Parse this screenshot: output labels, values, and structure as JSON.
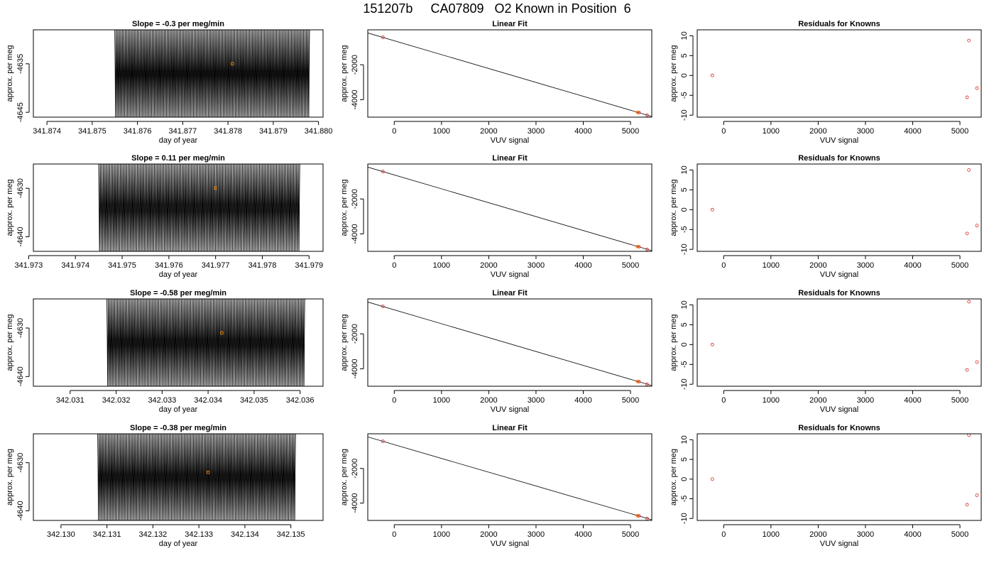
{
  "header": {
    "title": "151207b     CA07809   O2 Known in Position  6"
  },
  "chart_data": [
    {
      "type": "line",
      "panel": "r1c1",
      "title": "Slope =  -0.3  per meg/min",
      "xlabel": "day of year",
      "ylabel": "approx. per meg",
      "xlim": [
        341.8737,
        341.8801
      ],
      "ylim": [
        -4646,
        -4628
      ],
      "xticks": [
        "341.874",
        "341.875",
        "341.876",
        "341.877",
        "341.878",
        "341.879",
        "341.880"
      ],
      "xtick_values": [
        341.874,
        341.875,
        341.876,
        341.877,
        341.878,
        341.879,
        341.88
      ],
      "yticks": [
        "-4635",
        "-4645"
      ],
      "ytick_values": [
        -4635,
        -4645
      ],
      "trace": {
        "x_start": 341.8755,
        "x_end": 341.8798,
        "cycles": 130,
        "high": -4628,
        "low": -4646
      },
      "marker": {
        "x": 341.8781,
        "y": -4635
      }
    },
    {
      "type": "line",
      "panel": "r2c1",
      "title": "Slope =  0.11  per meg/min",
      "xlabel": "day of year",
      "ylabel": "approx. per meg",
      "xlim": [
        341.9731,
        341.9793
      ],
      "ylim": [
        -4643,
        -4625
      ],
      "xticks": [
        "341.973",
        "341.974",
        "341.975",
        "341.976",
        "341.977",
        "341.978",
        "341.979"
      ],
      "xtick_values": [
        341.973,
        341.974,
        341.975,
        341.976,
        341.977,
        341.978,
        341.979
      ],
      "yticks": [
        "-4630",
        "-4640"
      ],
      "ytick_values": [
        -4630,
        -4640
      ],
      "trace": {
        "x_start": 341.9745,
        "x_end": 341.9788,
        "cycles": 130,
        "high": -4625,
        "low": -4643
      },
      "marker": {
        "x": 341.977,
        "y": -4630
      }
    },
    {
      "type": "line",
      "panel": "r3c1",
      "title": "Slope =  -0.58  per meg/min",
      "xlabel": "day of year",
      "ylabel": "approx. per meg",
      "xlim": [
        342.0302,
        342.0365
      ],
      "ylim": [
        -4642,
        -4624
      ],
      "xticks": [
        "342.031",
        "342.032",
        "342.033",
        "342.034",
        "342.035",
        "342.036"
      ],
      "xtick_values": [
        342.031,
        342.032,
        342.033,
        342.034,
        342.035,
        342.036
      ],
      "yticks": [
        "-4630",
        "-4640"
      ],
      "ytick_values": [
        -4630,
        -4640
      ],
      "trace": {
        "x_start": 342.0318,
        "x_end": 342.0361,
        "cycles": 130,
        "high": -4624,
        "low": -4642
      },
      "marker": {
        "x": 342.0343,
        "y": -4631
      }
    },
    {
      "type": "line",
      "panel": "r4c1",
      "title": "Slope =  -0.38  per meg/min",
      "xlabel": "day of year",
      "ylabel": "approx. per meg",
      "xlim": [
        342.1294,
        342.1357
      ],
      "ylim": [
        -4642,
        -4624
      ],
      "xticks": [
        "342.130",
        "342.131",
        "342.132",
        "342.133",
        "342.134",
        "342.135"
      ],
      "xtick_values": [
        342.13,
        342.131,
        342.132,
        342.133,
        342.134,
        342.135
      ],
      "yticks": [
        "-4630",
        "-4640"
      ],
      "ytick_values": [
        -4630,
        -4640
      ],
      "trace": {
        "x_start": 342.1308,
        "x_end": 342.1351,
        "cycles": 130,
        "high": -4624,
        "low": -4642
      },
      "marker": {
        "x": 342.1332,
        "y": -4632
      }
    },
    {
      "type": "scatter",
      "panel": "r1c2",
      "title": "Linear Fit",
      "xlabel": "VUV signal",
      "ylabel": "approx. per meg",
      "xlim": [
        -560,
        5450
      ],
      "ylim": [
        -5000,
        0
      ],
      "xticks": [
        "0",
        "1000",
        "2000",
        "3000",
        "4000",
        "5000"
      ],
      "xtick_values": [
        0,
        1000,
        2000,
        3000,
        4000,
        5000
      ],
      "yticks": [
        "-2000",
        "-4000"
      ],
      "ytick_values": [
        -2000,
        -4000
      ],
      "fit_line": [
        [
          -560,
          -180
        ],
        [
          5450,
          -4960
        ]
      ],
      "points": [
        [
          -240,
          -430
        ],
        [
          5150,
          -4730
        ],
        [
          5180,
          -4735
        ],
        [
          5350,
          -4890
        ]
      ],
      "marker": {
        "x": 5160,
        "y": -4730
      }
    },
    {
      "type": "scatter",
      "panel": "r2c2",
      "title": "Linear Fit",
      "xlabel": "VUV signal",
      "ylabel": "approx. per meg",
      "xlim": [
        -560,
        5450
      ],
      "ylim": [
        -5000,
        0
      ],
      "xticks": [
        "0",
        "1000",
        "2000",
        "3000",
        "4000",
        "5000"
      ],
      "xtick_values": [
        0,
        1000,
        2000,
        3000,
        4000,
        5000
      ],
      "yticks": [
        "-2000",
        "-4000"
      ],
      "ytick_values": [
        -2000,
        -4000
      ],
      "fit_line": [
        [
          -560,
          -180
        ],
        [
          5450,
          -4960
        ]
      ],
      "points": [
        [
          -240,
          -430
        ],
        [
          5150,
          -4730
        ],
        [
          5180,
          -4735
        ],
        [
          5350,
          -4890
        ]
      ],
      "marker": {
        "x": 5160,
        "y": -4730
      }
    },
    {
      "type": "scatter",
      "panel": "r3c2",
      "title": "Linear Fit",
      "xlabel": "VUV signal",
      "ylabel": "approx. per meg",
      "xlim": [
        -560,
        5450
      ],
      "ylim": [
        -5000,
        0
      ],
      "xticks": [
        "0",
        "1000",
        "2000",
        "3000",
        "4000",
        "5000"
      ],
      "xtick_values": [
        0,
        1000,
        2000,
        3000,
        4000,
        5000
      ],
      "yticks": [
        "-2000",
        "-4000"
      ],
      "ytick_values": [
        -2000,
        -4000
      ],
      "fit_line": [
        [
          -560,
          -180
        ],
        [
          5450,
          -4960
        ]
      ],
      "points": [
        [
          -240,
          -430
        ],
        [
          5150,
          -4730
        ],
        [
          5180,
          -4735
        ],
        [
          5350,
          -4890
        ]
      ],
      "marker": {
        "x": 5160,
        "y": -4730
      }
    },
    {
      "type": "scatter",
      "panel": "r4c2",
      "title": "Linear Fit",
      "xlabel": "VUV signal",
      "ylabel": "approx. per meg",
      "xlim": [
        -560,
        5450
      ],
      "ylim": [
        -5000,
        0
      ],
      "xticks": [
        "0",
        "1000",
        "2000",
        "3000",
        "4000",
        "5000"
      ],
      "xtick_values": [
        0,
        1000,
        2000,
        3000,
        4000,
        5000
      ],
      "yticks": [
        "-2000",
        "-4000"
      ],
      "ytick_values": [
        -2000,
        -4000
      ],
      "fit_line": [
        [
          -560,
          -180
        ],
        [
          5450,
          -4960
        ]
      ],
      "points": [
        [
          -240,
          -430
        ],
        [
          5150,
          -4730
        ],
        [
          5180,
          -4735
        ],
        [
          5350,
          -4890
        ]
      ],
      "marker": {
        "x": 5160,
        "y": -4730
      }
    },
    {
      "type": "scatter",
      "panel": "r1c3",
      "title": "Residuals for Knowns",
      "xlabel": "VUV signal",
      "ylabel": "approx. per meg",
      "xlim": [
        -560,
        5450
      ],
      "ylim": [
        -10.5,
        11.5
      ],
      "xticks": [
        "0",
        "1000",
        "2000",
        "3000",
        "4000",
        "5000"
      ],
      "xtick_values": [
        0,
        1000,
        2000,
        3000,
        4000,
        5000
      ],
      "yticks": [
        "-10",
        "-5",
        "0",
        "5",
        "10"
      ],
      "ytick_values": [
        -10,
        -5,
        0,
        5,
        10
      ],
      "points": [
        [
          -240,
          0
        ],
        [
          5150,
          -5.5
        ],
        [
          5190,
          8.8
        ],
        [
          5360,
          -3.2
        ]
      ]
    },
    {
      "type": "scatter",
      "panel": "r2c3",
      "title": "Residuals for Knowns",
      "xlabel": "VUV signal",
      "ylabel": "approx. per meg",
      "xlim": [
        -560,
        5450
      ],
      "ylim": [
        -10.5,
        11.5
      ],
      "xticks": [
        "0",
        "1000",
        "2000",
        "3000",
        "4000",
        "5000"
      ],
      "xtick_values": [
        0,
        1000,
        2000,
        3000,
        4000,
        5000
      ],
      "yticks": [
        "-10",
        "-5",
        "0",
        "5",
        "10"
      ],
      "ytick_values": [
        -10,
        -5,
        0,
        5,
        10
      ],
      "points": [
        [
          -240,
          0
        ],
        [
          5150,
          -6.0
        ],
        [
          5190,
          10.0
        ],
        [
          5360,
          -4.0
        ]
      ]
    },
    {
      "type": "scatter",
      "panel": "r3c3",
      "title": "Residuals for Knowns",
      "xlabel": "VUV signal",
      "ylabel": "approx. per meg",
      "xlim": [
        -560,
        5450
      ],
      "ylim": [
        -10.5,
        11.5
      ],
      "xticks": [
        "0",
        "1000",
        "2000",
        "3000",
        "4000",
        "5000"
      ],
      "xtick_values": [
        0,
        1000,
        2000,
        3000,
        4000,
        5000
      ],
      "yticks": [
        "-10",
        "-5",
        "0",
        "5",
        "10"
      ],
      "ytick_values": [
        -10,
        -5,
        0,
        5,
        10
      ],
      "points": [
        [
          -240,
          0
        ],
        [
          5150,
          -6.4
        ],
        [
          5190,
          10.8
        ],
        [
          5360,
          -4.4
        ]
      ]
    },
    {
      "type": "scatter",
      "panel": "r4c3",
      "title": "Residuals for Knowns",
      "xlabel": "VUV signal",
      "ylabel": "approx. per meg",
      "xlim": [
        -560,
        5450
      ],
      "ylim": [
        -10.5,
        11.5
      ],
      "xticks": [
        "0",
        "1000",
        "2000",
        "3000",
        "4000",
        "5000"
      ],
      "xtick_values": [
        0,
        1000,
        2000,
        3000,
        4000,
        5000
      ],
      "yticks": [
        "-10",
        "-5",
        "0",
        "5",
        "10"
      ],
      "ytick_values": [
        -10,
        -5,
        0,
        5,
        10
      ],
      "points": [
        [
          -240,
          0
        ],
        [
          5150,
          -6.5
        ],
        [
          5190,
          11.2
        ],
        [
          5360,
          -4.1
        ]
      ]
    }
  ],
  "colors": {
    "trace": "#000000",
    "fit_line": "#000000",
    "points": "#d62728",
    "marker": "#ff8c00",
    "axes": "#000000"
  }
}
